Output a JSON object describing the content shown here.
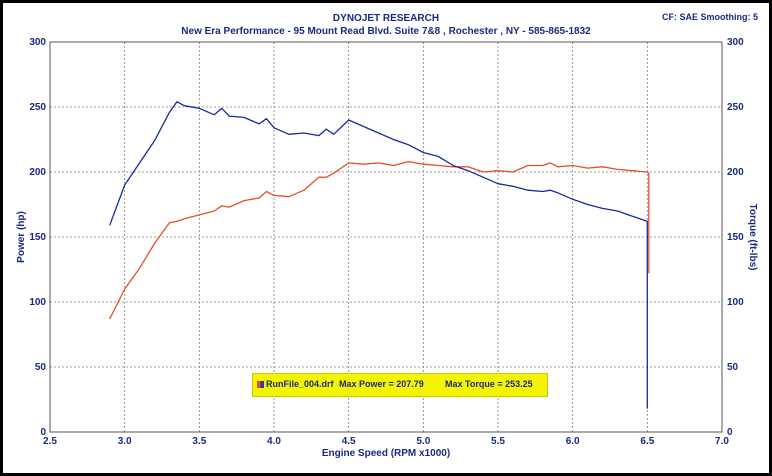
{
  "header": {
    "line1": "DYNOJET RESEARCH",
    "line2": "New Era Performance - 95 Mount Read Blvd. Suite 7&8 , Rochester , NY - 585-865-1832",
    "corrections": "CF: SAE  Smoothing: 5"
  },
  "legend": {
    "run_file": "RunFile_004.drf",
    "max_power": "Max Power = 207.79",
    "max_torque": "Max Torque = 253.25"
  },
  "colors": {
    "power": "#e4502a",
    "torque": "#1a2a9a",
    "grid": "#7f7f7f",
    "text": "#1a2a80",
    "legend_bg": "#f4f400"
  },
  "chart_data": {
    "type": "line",
    "xlabel": "Engine Speed (RPM x1000)",
    "ylabel_left": "Power (hp)",
    "ylabel_right": "Torque (ft-lbs)",
    "xlim": [
      2.5,
      7.0
    ],
    "ylim": [
      0,
      300
    ],
    "x_ticks": [
      "2.5",
      "3.0",
      "3.5",
      "4.0",
      "4.5",
      "5.0",
      "5.5",
      "6.0",
      "6.5",
      "7.0"
    ],
    "y_ticks": [
      "0",
      "50",
      "100",
      "150",
      "200",
      "250",
      "300"
    ],
    "grid": true,
    "series": [
      {
        "key": "power",
        "x": [
          2.9,
          3.0,
          3.1,
          3.2,
          3.3,
          3.35,
          3.4,
          3.5,
          3.6,
          3.65,
          3.7,
          3.8,
          3.9,
          3.95,
          4.0,
          4.1,
          4.2,
          4.3,
          4.35,
          4.4,
          4.5,
          4.6,
          4.7,
          4.8,
          4.9,
          5.0,
          5.1,
          5.2,
          5.3,
          5.4,
          5.5,
          5.6,
          5.7,
          5.8,
          5.85,
          5.9,
          6.0,
          6.1,
          6.2,
          6.3,
          6.4,
          6.5,
          6.51,
          6.51
        ],
        "y": [
          87,
          110,
          126,
          145,
          161,
          162,
          164,
          167,
          170,
          174,
          173,
          178,
          180,
          185,
          182,
          181,
          186,
          196,
          196,
          199,
          207,
          206,
          207,
          205,
          208,
          206,
          205,
          204,
          204,
          200,
          201,
          200,
          205,
          205,
          207,
          204,
          205,
          203,
          204,
          202,
          201,
          200,
          199,
          122
        ]
      },
      {
        "key": "torque",
        "x": [
          2.9,
          3.0,
          3.1,
          3.2,
          3.3,
          3.35,
          3.4,
          3.5,
          3.6,
          3.65,
          3.7,
          3.8,
          3.9,
          3.95,
          4.0,
          4.1,
          4.2,
          4.3,
          4.35,
          4.4,
          4.5,
          4.6,
          4.7,
          4.8,
          4.9,
          5.0,
          5.1,
          5.2,
          5.3,
          5.4,
          5.5,
          5.6,
          5.7,
          5.8,
          5.85,
          5.9,
          6.0,
          6.1,
          6.2,
          6.3,
          6.4,
          6.5,
          6.5,
          6.5
        ],
        "y": [
          159,
          190,
          207,
          224,
          246,
          254,
          251,
          249,
          244,
          249,
          243,
          242,
          237,
          241,
          234,
          229,
          230,
          228,
          233,
          229,
          240,
          235,
          230,
          225,
          221,
          215,
          212,
          205,
          201,
          196,
          191,
          189,
          186,
          185,
          186,
          184,
          179,
          175,
          172,
          170,
          166,
          162,
          160,
          18
        ]
      }
    ]
  }
}
